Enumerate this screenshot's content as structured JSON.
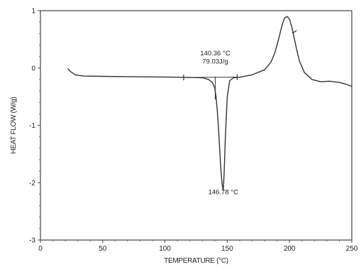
{
  "chart_data": {
    "type": "line",
    "title": "",
    "xlabel": "TEMPERATURE (°C)",
    "ylabel": "HEAT FLOW (W/g)",
    "xlim": [
      0,
      250
    ],
    "ylim": [
      -3,
      1
    ],
    "xticks": [
      0,
      50,
      100,
      150,
      200,
      250
    ],
    "yticks": [
      -3,
      -2,
      -1,
      0,
      1
    ],
    "grid": false,
    "series": [
      {
        "color": "#333333",
        "x": [
          22,
          24,
          28,
          35,
          50,
          70,
          90,
          110,
          120,
          130,
          135,
          138,
          140,
          141,
          142,
          143,
          144,
          145,
          146,
          146.8,
          147.5,
          148.5,
          150,
          152,
          155,
          160,
          170,
          180,
          185,
          188,
          190,
          192,
          194,
          196,
          198,
          200,
          202,
          204,
          206,
          208,
          212,
          218,
          225,
          232,
          240,
          245,
          250
        ],
        "y": [
          -0.01,
          -0.06,
          -0.12,
          -0.14,
          -0.145,
          -0.15,
          -0.155,
          -0.16,
          -0.165,
          -0.17,
          -0.2,
          -0.25,
          -0.35,
          -0.5,
          -0.75,
          -1.05,
          -1.45,
          -1.8,
          -2.05,
          -2.13,
          -1.85,
          -1.2,
          -0.5,
          -0.22,
          -0.17,
          -0.16,
          -0.12,
          -0.03,
          0.1,
          0.25,
          0.4,
          0.57,
          0.75,
          0.87,
          0.9,
          0.85,
          0.7,
          0.5,
          0.3,
          0.12,
          -0.08,
          -0.2,
          -0.24,
          -0.23,
          -0.25,
          -0.28,
          -0.32
        ]
      }
    ],
    "integration": {
      "baseline": {
        "x": [
          115,
          158
        ],
        "y": [
          -0.165,
          -0.16
        ]
      },
      "markers": [
        {
          "x": 115,
          "y": -0.165
        },
        {
          "x": 158,
          "y": -0.16
        }
      ],
      "onset_x": 140.36,
      "onset_line_y": [
        -0.55,
        -0.15
      ]
    },
    "peak_marker": {
      "x": 204,
      "y": 0.63
    },
    "annotations": [
      {
        "text": "140.36 °C",
        "x": 140.36,
        "y": 0.22
      },
      {
        "text": "79.03J/g",
        "x": 140.36,
        "y": 0.08
      },
      {
        "text": "146.78 °C",
        "x": 146.78,
        "y": -2.2
      }
    ]
  }
}
